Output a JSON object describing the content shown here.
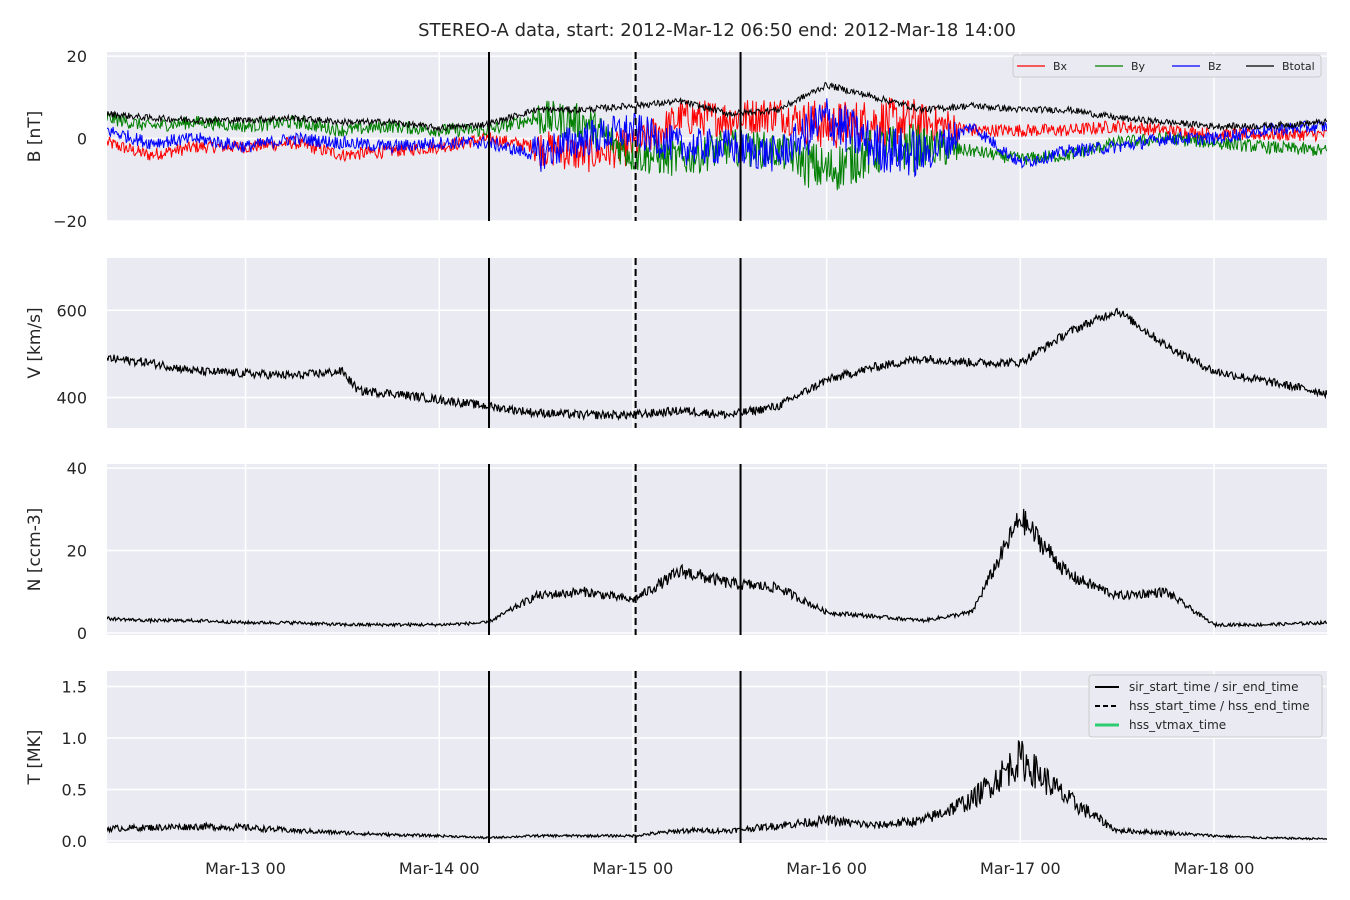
{
  "title": "STEREO-A data, start: 2012-Mar-12 06:50  end: 2012-Mar-18 14:00",
  "colors": {
    "background": "#eaeaf2",
    "grid": "#ffffff",
    "text": "#262626",
    "Bx": "#ff0000",
    "By": "#008000",
    "Bz": "#0000ff",
    "Btotal": "#000000",
    "hss_vtmax": "#2ecc71"
  },
  "x_axis": {
    "range": [
      "2012-03-12 06:50",
      "2012-03-18 14:00"
    ],
    "ticks": [
      "Mar-13 00",
      "Mar-14 00",
      "Mar-15 00",
      "Mar-16 00",
      "Mar-17 00",
      "Mar-18 00"
    ]
  },
  "events": [
    {
      "label": "sir_start_time / sir_end_time",
      "style": "solid",
      "times": [
        "2012-03-14 06:10",
        "2012-03-15 13:20"
      ]
    },
    {
      "label": "hss_start_time / hss_end_time",
      "style": "dashed",
      "times": [
        "2012-03-15 00:20"
      ]
    },
    {
      "label": "hss_vtmax_time",
      "style": "solid",
      "times": []
    }
  ],
  "chart_data": [
    {
      "type": "line",
      "ylabel": "B [nT]",
      "ylim": [
        -20,
        21
      ],
      "yticks": [
        "−20",
        "0",
        "20"
      ],
      "legend": "top-right",
      "legend_labels": [
        "Bx",
        "By",
        "Bz",
        "Btotal"
      ],
      "series": [
        {
          "name": "Bx",
          "points": [
            [
              "2012-03-12 06:50",
              -1
            ],
            [
              "2012-03-12 12:00",
              -4
            ],
            [
              "2012-03-12 18:00",
              -2
            ],
            [
              "2012-03-13 00:00",
              -2
            ],
            [
              "2012-03-13 06:00",
              -1
            ],
            [
              "2012-03-13 12:00",
              -4
            ],
            [
              "2012-03-13 18:00",
              -3
            ],
            [
              "2012-03-14 00:00",
              -2
            ],
            [
              "2012-03-14 06:00",
              0
            ],
            [
              "2012-03-14 12:00",
              -2
            ],
            [
              "2012-03-14 18:00",
              -4
            ],
            [
              "2012-03-15 00:00",
              -2
            ],
            [
              "2012-03-15 06:00",
              5
            ],
            [
              "2012-03-15 12:00",
              5
            ],
            [
              "2012-03-15 18:00",
              6
            ],
            [
              "2012-03-16 00:00",
              3
            ],
            [
              "2012-03-16 06:00",
              4
            ],
            [
              "2012-03-16 12:00",
              4
            ],
            [
              "2012-03-16 18:00",
              2
            ],
            [
              "2012-03-17 00:00",
              2
            ],
            [
              "2012-03-17 06:00",
              2
            ],
            [
              "2012-03-17 12:00",
              3
            ],
            [
              "2012-03-17 18:00",
              2
            ],
            [
              "2012-03-18 00:00",
              1
            ],
            [
              "2012-03-18 06:00",
              1
            ],
            [
              "2012-03-18 14:00",
              1
            ]
          ]
        },
        {
          "name": "By",
          "points": [
            [
              "2012-03-12 06:50",
              5
            ],
            [
              "2012-03-12 12:00",
              3
            ],
            [
              "2012-03-12 18:00",
              4
            ],
            [
              "2012-03-13 00:00",
              3
            ],
            [
              "2012-03-13 06:00",
              4
            ],
            [
              "2012-03-13 12:00",
              2
            ],
            [
              "2012-03-13 18:00",
              3
            ],
            [
              "2012-03-14 00:00",
              2
            ],
            [
              "2012-03-14 06:00",
              2
            ],
            [
              "2012-03-14 12:00",
              5
            ],
            [
              "2012-03-14 18:00",
              4
            ],
            [
              "2012-03-15 00:00",
              -4
            ],
            [
              "2012-03-15 06:00",
              -5
            ],
            [
              "2012-03-15 12:00",
              -2
            ],
            [
              "2012-03-15 18:00",
              -3
            ],
            [
              "2012-03-16 00:00",
              -8
            ],
            [
              "2012-03-16 06:00",
              -3
            ],
            [
              "2012-03-16 12:00",
              -2
            ],
            [
              "2012-03-16 18:00",
              -3
            ],
            [
              "2012-03-17 00:00",
              -5
            ],
            [
              "2012-03-17 06:00",
              -4
            ],
            [
              "2012-03-17 12:00",
              -1
            ],
            [
              "2012-03-17 18:00",
              0
            ],
            [
              "2012-03-18 00:00",
              -1
            ],
            [
              "2012-03-18 06:00",
              -2
            ],
            [
              "2012-03-18 14:00",
              -3
            ]
          ]
        },
        {
          "name": "Bz",
          "points": [
            [
              "2012-03-12 06:50",
              2
            ],
            [
              "2012-03-12 12:00",
              -1
            ],
            [
              "2012-03-12 18:00",
              0
            ],
            [
              "2012-03-13 00:00",
              -2
            ],
            [
              "2012-03-13 06:00",
              0
            ],
            [
              "2012-03-13 12:00",
              -1
            ],
            [
              "2012-03-13 18:00",
              -2
            ],
            [
              "2012-03-14 00:00",
              -1
            ],
            [
              "2012-03-14 06:00",
              -1
            ],
            [
              "2012-03-14 12:00",
              -4
            ],
            [
              "2012-03-14 18:00",
              0
            ],
            [
              "2012-03-15 00:00",
              2
            ],
            [
              "2012-03-15 06:00",
              -2
            ],
            [
              "2012-03-15 12:00",
              -2
            ],
            [
              "2012-03-15 18:00",
              -4
            ],
            [
              "2012-03-16 00:00",
              5
            ],
            [
              "2012-03-16 06:00",
              -2
            ],
            [
              "2012-03-16 12:00",
              -4
            ],
            [
              "2012-03-16 18:00",
              3
            ],
            [
              "2012-03-17 00:00",
              -6
            ],
            [
              "2012-03-17 06:00",
              -3
            ],
            [
              "2012-03-17 12:00",
              -2
            ],
            [
              "2012-03-17 18:00",
              0
            ],
            [
              "2012-03-18 00:00",
              0
            ],
            [
              "2012-03-18 06:00",
              2
            ],
            [
              "2012-03-18 14:00",
              3
            ]
          ]
        },
        {
          "name": "Btotal",
          "points": [
            [
              "2012-03-12 06:50",
              6
            ],
            [
              "2012-03-12 12:00",
              5
            ],
            [
              "2012-03-12 18:00",
              4.5
            ],
            [
              "2012-03-13 00:00",
              4.5
            ],
            [
              "2012-03-13 06:00",
              5
            ],
            [
              "2012-03-13 12:00",
              4
            ],
            [
              "2012-03-13 18:00",
              4
            ],
            [
              "2012-03-14 00:00",
              2.5
            ],
            [
              "2012-03-14 06:00",
              3.5
            ],
            [
              "2012-03-14 12:00",
              7
            ],
            [
              "2012-03-14 18:00",
              7
            ],
            [
              "2012-03-15 00:00",
              8
            ],
            [
              "2012-03-15 06:00",
              9
            ],
            [
              "2012-03-15 12:00",
              6
            ],
            [
              "2012-03-15 18:00",
              7
            ],
            [
              "2012-03-16 00:00",
              13
            ],
            [
              "2012-03-16 06:00",
              10
            ],
            [
              "2012-03-16 12:00",
              7
            ],
            [
              "2012-03-16 18:00",
              8
            ],
            [
              "2012-03-17 00:00",
              7
            ],
            [
              "2012-03-17 06:00",
              7
            ],
            [
              "2012-03-17 12:00",
              5
            ],
            [
              "2012-03-17 18:00",
              4
            ],
            [
              "2012-03-18 00:00",
              3
            ],
            [
              "2012-03-18 06:00",
              3
            ],
            [
              "2012-03-18 14:00",
              4
            ]
          ]
        }
      ]
    },
    {
      "type": "line",
      "ylabel": "V [km/s]",
      "ylim": [
        330,
        720
      ],
      "yticks": [
        "400",
        "600"
      ],
      "series": [
        {
          "name": "V",
          "points": [
            [
              "2012-03-12 06:50",
              490
            ],
            [
              "2012-03-12 12:00",
              480
            ],
            [
              "2012-03-12 18:00",
              460
            ],
            [
              "2012-03-13 00:00",
              455
            ],
            [
              "2012-03-13 06:00",
              450
            ],
            [
              "2012-03-13 12:00",
              460
            ],
            [
              "2012-03-13 14:00",
              415
            ],
            [
              "2012-03-13 18:00",
              410
            ],
            [
              "2012-03-14 00:00",
              395
            ],
            [
              "2012-03-14 06:00",
              380
            ],
            [
              "2012-03-14 12:00",
              365
            ],
            [
              "2012-03-14 18:00",
              360
            ],
            [
              "2012-03-15 00:00",
              360
            ],
            [
              "2012-03-15 06:00",
              370
            ],
            [
              "2012-03-15 12:00",
              360
            ],
            [
              "2012-03-15 18:00",
              380
            ],
            [
              "2012-03-16 00:00",
              440
            ],
            [
              "2012-03-16 06:00",
              470
            ],
            [
              "2012-03-16 12:00",
              490
            ],
            [
              "2012-03-16 18:00",
              480
            ],
            [
              "2012-03-17 00:00",
              480
            ],
            [
              "2012-03-17 06:00",
              550
            ],
            [
              "2012-03-17 12:00",
              600
            ],
            [
              "2012-03-17 18:00",
              520
            ],
            [
              "2012-03-18 00:00",
              460
            ],
            [
              "2012-03-18 14:00",
              410
            ]
          ]
        }
      ]
    },
    {
      "type": "line",
      "ylabel": "N [ccm-3]",
      "ylim": [
        -0.5,
        41
      ],
      "yticks": [
        "0",
        "20",
        "40"
      ],
      "series": [
        {
          "name": "N",
          "points": [
            [
              "2012-03-12 06:50",
              3.5
            ],
            [
              "2012-03-12 12:00",
              3
            ],
            [
              "2012-03-12 18:00",
              3
            ],
            [
              "2012-03-13 00:00",
              2.5
            ],
            [
              "2012-03-13 06:00",
              2.5
            ],
            [
              "2012-03-13 12:00",
              2
            ],
            [
              "2012-03-13 18:00",
              2
            ],
            [
              "2012-03-14 00:00",
              2
            ],
            [
              "2012-03-14 06:00",
              2.5
            ],
            [
              "2012-03-14 12:00",
              9
            ],
            [
              "2012-03-14 18:00",
              10
            ],
            [
              "2012-03-15 00:00",
              8
            ],
            [
              "2012-03-15 06:00",
              15
            ],
            [
              "2012-03-15 12:00",
              12
            ],
            [
              "2012-03-15 18:00",
              11
            ],
            [
              "2012-03-16 00:00",
              5
            ],
            [
              "2012-03-16 06:00",
              4
            ],
            [
              "2012-03-16 12:00",
              3
            ],
            [
              "2012-03-16 18:00",
              5
            ],
            [
              "2012-03-17 00:00",
              28
            ],
            [
              "2012-03-17 06:00",
              14
            ],
            [
              "2012-03-17 12:00",
              9
            ],
            [
              "2012-03-17 18:00",
              10
            ],
            [
              "2012-03-18 00:00",
              2
            ],
            [
              "2012-03-18 06:00",
              2
            ],
            [
              "2012-03-18 14:00",
              2.5
            ]
          ]
        }
      ]
    },
    {
      "type": "line",
      "ylabel": "T [MK]",
      "ylim": [
        -0.02,
        1.65
      ],
      "yticks": [
        "0.0",
        "0.5",
        "1.0",
        "1.5"
      ],
      "legend": "top-right",
      "series": [
        {
          "name": "T",
          "points": [
            [
              "2012-03-12 06:50",
              0.12
            ],
            [
              "2012-03-12 12:00",
              0.13
            ],
            [
              "2012-03-12 18:00",
              0.14
            ],
            [
              "2012-03-13 00:00",
              0.13
            ],
            [
              "2012-03-13 06:00",
              0.1
            ],
            [
              "2012-03-13 12:00",
              0.08
            ],
            [
              "2012-03-13 18:00",
              0.06
            ],
            [
              "2012-03-14 00:00",
              0.05
            ],
            [
              "2012-03-14 06:00",
              0.03
            ],
            [
              "2012-03-14 12:00",
              0.05
            ],
            [
              "2012-03-14 18:00",
              0.05
            ],
            [
              "2012-03-15 00:00",
              0.05
            ],
            [
              "2012-03-15 06:00",
              0.1
            ],
            [
              "2012-03-15 12:00",
              0.1
            ],
            [
              "2012-03-15 18:00",
              0.15
            ],
            [
              "2012-03-16 00:00",
              0.2
            ],
            [
              "2012-03-16 06:00",
              0.15
            ],
            [
              "2012-03-16 12:00",
              0.2
            ],
            [
              "2012-03-16 18:00",
              0.4
            ],
            [
              "2012-03-17 00:00",
              0.8
            ],
            [
              "2012-03-17 06:00",
              0.4
            ],
            [
              "2012-03-17 12:00",
              0.1
            ],
            [
              "2012-03-17 18:00",
              0.08
            ],
            [
              "2012-03-18 00:00",
              0.05
            ],
            [
              "2012-03-18 06:00",
              0.03
            ],
            [
              "2012-03-18 14:00",
              0.02
            ]
          ]
        }
      ]
    }
  ]
}
